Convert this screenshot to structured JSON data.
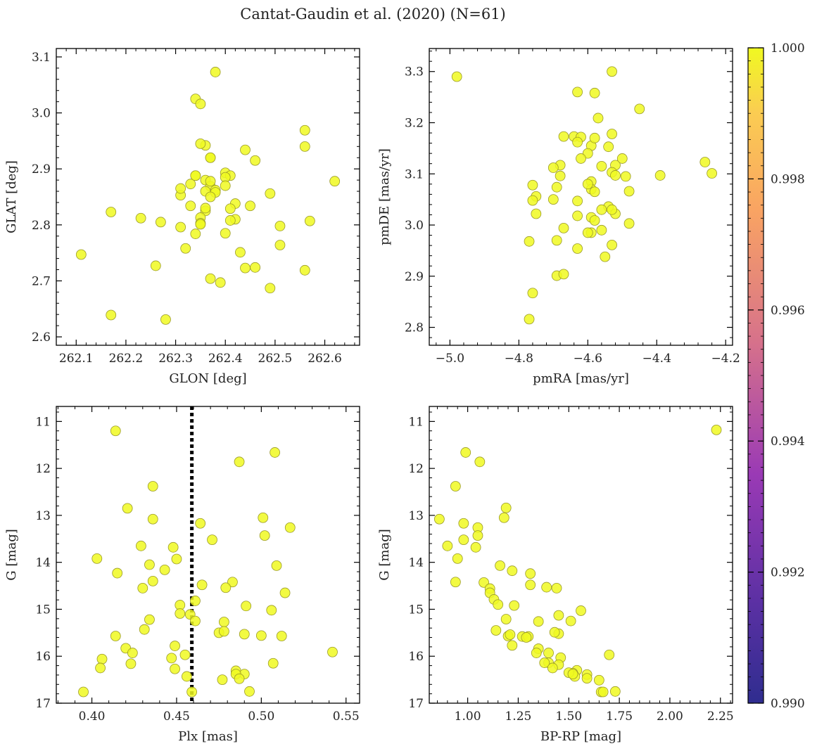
{
  "title": "Cantat-Gaudin et al. (2020) (N=61)",
  "colors": {
    "point": "#f0f921",
    "point_edge": "#9a9a2a",
    "vline": "#000000"
  },
  "colorbar": {
    "min": 0.99,
    "max": 1.0,
    "ticks": [
      "0.990",
      "0.992",
      "0.994",
      "0.996",
      "0.998",
      "1.000"
    ],
    "tick_values": [
      0.99,
      0.992,
      0.994,
      0.996,
      0.998,
      1.0
    ],
    "colormap": "plasma"
  },
  "chart_data": [
    {
      "type": "scatter",
      "xlabel": "GLON [deg]",
      "ylabel": "GLAT [deg]",
      "xlim": [
        262.06,
        262.67
      ],
      "ylim": [
        2.585,
        3.115
      ],
      "xticks": [
        262.1,
        262.2,
        262.3,
        262.4,
        262.5,
        262.6
      ],
      "xtick_labels": [
        "262.1",
        "262.2",
        "262.3",
        "262.4",
        "262.5",
        "262.6"
      ],
      "yticks": [
        2.6,
        2.7,
        2.8,
        2.9,
        3.0,
        3.1
      ],
      "ytick_labels": [
        "2.6",
        "2.7",
        "2.8",
        "2.9",
        "3.0",
        "3.1"
      ],
      "x": [
        262.38,
        262.34,
        262.35,
        262.56,
        262.56,
        262.44,
        262.36,
        262.37,
        262.46,
        262.35,
        262.4,
        262.34,
        262.41,
        262.36,
        262.62,
        262.37,
        262.38,
        262.36,
        262.38,
        262.31,
        262.49,
        262.4,
        262.37,
        262.33,
        262.42,
        262.45,
        262.31,
        262.36,
        262.17,
        262.23,
        262.35,
        262.42,
        262.57,
        262.27,
        262.51,
        262.35,
        262.31,
        262.41,
        262.4,
        262.34,
        262.43,
        262.11,
        262.51,
        262.33,
        262.26,
        262.44,
        262.46,
        262.56,
        262.37,
        262.39,
        262.49,
        262.17,
        262.28,
        262.32,
        262.41,
        262.4,
        262.36,
        262.37,
        262.34,
        262.35,
        262.37
      ],
      "y": [
        3.073,
        3.025,
        3.016,
        2.969,
        2.94,
        2.934,
        2.942,
        2.92,
        2.915,
        2.945,
        2.893,
        2.888,
        2.888,
        2.88,
        2.878,
        2.869,
        2.862,
        2.86,
        2.858,
        2.853,
        2.856,
        2.885,
        2.85,
        2.873,
        2.838,
        2.834,
        2.865,
        2.825,
        2.823,
        2.812,
        2.813,
        2.81,
        2.807,
        2.805,
        2.798,
        2.803,
        2.796,
        2.808,
        2.785,
        2.784,
        2.751,
        2.747,
        2.764,
        2.834,
        2.727,
        2.723,
        2.724,
        2.719,
        2.704,
        2.697,
        2.687,
        2.639,
        2.631,
        2.758,
        2.829,
        2.87,
        2.83,
        2.92,
        2.888,
        2.801,
        2.878
      ]
    },
    {
      "type": "scatter",
      "xlabel": "pmRA [mas/yr]",
      "ylabel": "pmDE [mas/yr]",
      "xlim": [
        -5.06,
        -4.18
      ],
      "ylim": [
        2.765,
        3.345
      ],
      "xticks": [
        -5.0,
        -4.8,
        -4.6,
        -4.4,
        -4.2
      ],
      "xtick_labels": [
        "−5.0",
        "−4.8",
        "−4.6",
        "−4.4",
        "−4.2"
      ],
      "yticks": [
        2.8,
        2.9,
        3.0,
        3.1,
        3.2,
        3.3
      ],
      "ytick_labels": [
        "2.8",
        "2.9",
        "3.0",
        "3.1",
        "3.2",
        "3.3"
      ],
      "x": [
        -4.98,
        -4.53,
        -4.63,
        -4.58,
        -4.45,
        -4.57,
        -4.67,
        -4.64,
        -4.53,
        -4.62,
        -4.54,
        -4.52,
        -4.59,
        -4.6,
        -4.5,
        -4.68,
        -4.53,
        -4.26,
        -4.7,
        -4.56,
        -4.52,
        -4.24,
        -4.49,
        -4.39,
        -4.68,
        -4.59,
        -4.76,
        -4.59,
        -4.69,
        -4.58,
        -4.48,
        -4.75,
        -4.76,
        -4.63,
        -4.52,
        -4.54,
        -4.53,
        -4.75,
        -4.59,
        -4.63,
        -4.58,
        -4.48,
        -4.67,
        -4.59,
        -4.6,
        -4.56,
        -4.69,
        -4.77,
        -4.63,
        -4.53,
        -4.69,
        -4.67,
        -4.55,
        -4.56,
        -4.7,
        -4.76,
        -4.77,
        -4.63,
        -4.58,
        -4.6,
        -4.62
      ],
      "y": [
        3.29,
        3.3,
        3.26,
        3.258,
        3.227,
        3.209,
        3.173,
        3.173,
        3.178,
        3.172,
        3.153,
        3.117,
        3.155,
        3.14,
        3.13,
        3.117,
        3.103,
        3.123,
        3.112,
        3.115,
        3.097,
        3.101,
        3.095,
        3.097,
        3.096,
        3.085,
        3.078,
        3.07,
        3.074,
        3.065,
        3.066,
        3.056,
        3.048,
        3.047,
        3.022,
        3.036,
        3.03,
        3.022,
        3.015,
        3.018,
        3.009,
        3.003,
        2.994,
        2.985,
        2.985,
        2.99,
        2.97,
        2.968,
        2.954,
        2.961,
        2.901,
        2.904,
        2.938,
        3.03,
        3.05,
        2.867,
        2.816,
        3.162,
        3.17,
        3.08,
        3.13
      ]
    },
    {
      "type": "scatter",
      "xlabel": "Plx [mas]",
      "ylabel": "G [mag]",
      "xlim": [
        0.379,
        0.558
      ],
      "ylim": [
        17.0,
        10.68
      ],
      "inverted_y": true,
      "vline": 0.459,
      "xticks": [
        0.4,
        0.45,
        0.5,
        0.55
      ],
      "xtick_labels": [
        "0.40",
        "0.45",
        "0.50",
        "0.55"
      ],
      "yticks": [
        11,
        12,
        13,
        14,
        15,
        16,
        17
      ],
      "ytick_labels": [
        "11",
        "12",
        "13",
        "14",
        "15",
        "16",
        "17"
      ],
      "x": [
        0.414,
        0.508,
        0.487,
        0.436,
        0.421,
        0.517,
        0.501,
        0.436,
        0.464,
        0.471,
        0.502,
        0.448,
        0.429,
        0.403,
        0.45,
        0.434,
        0.509,
        0.443,
        0.415,
        0.436,
        0.43,
        0.483,
        0.465,
        0.479,
        0.514,
        0.461,
        0.491,
        0.452,
        0.478,
        0.452,
        0.458,
        0.506,
        0.434,
        0.431,
        0.475,
        0.461,
        0.49,
        0.512,
        0.414,
        0.5,
        0.478,
        0.449,
        0.42,
        0.542,
        0.424,
        0.455,
        0.447,
        0.406,
        0.507,
        0.423,
        0.405,
        0.449,
        0.485,
        0.456,
        0.49,
        0.485,
        0.487,
        0.477,
        0.493,
        0.395,
        0.459
      ],
      "y": [
        11.2,
        11.66,
        11.86,
        12.38,
        12.85,
        13.26,
        13.05,
        13.08,
        13.17,
        13.52,
        13.43,
        13.68,
        13.65,
        13.92,
        13.93,
        14.05,
        14.07,
        14.16,
        14.23,
        14.4,
        14.55,
        14.42,
        14.48,
        14.54,
        14.65,
        14.82,
        14.93,
        14.91,
        15.27,
        15.09,
        15.11,
        15.02,
        15.22,
        15.43,
        15.5,
        15.25,
        15.53,
        15.57,
        15.57,
        15.56,
        15.47,
        15.78,
        15.83,
        15.91,
        15.93,
        15.97,
        16.04,
        16.06,
        16.15,
        16.16,
        16.25,
        16.27,
        16.31,
        16.43,
        16.38,
        16.38,
        16.48,
        16.5,
        16.75,
        16.76,
        16.76
      ]
    },
    {
      "type": "scatter",
      "xlabel": "BP-RP [mag]",
      "ylabel": "G [mag]",
      "xlim": [
        0.81,
        2.31
      ],
      "ylim": [
        17.0,
        10.68
      ],
      "inverted_y": true,
      "xticks": [
        1.0,
        1.25,
        1.5,
        1.75,
        2.0,
        2.25
      ],
      "xtick_labels": [
        "1.00",
        "1.25",
        "1.50",
        "1.75",
        "2.00",
        "2.25"
      ],
      "yticks": [
        11,
        12,
        13,
        14,
        15,
        16,
        17
      ],
      "ytick_labels": [
        "11",
        "12",
        "13",
        "14",
        "15",
        "16",
        "17"
      ],
      "x": [
        2.23,
        0.99,
        1.06,
        0.94,
        1.19,
        0.86,
        1.05,
        1.18,
        0.98,
        0.98,
        1.05,
        0.9,
        1.04,
        0.95,
        1.16,
        1.22,
        1.31,
        1.44,
        1.31,
        1.39,
        0.94,
        1.08,
        1.11,
        1.11,
        1.23,
        1.13,
        1.56,
        1.45,
        1.35,
        1.51,
        1.19,
        1.45,
        1.14,
        1.2,
        1.22,
        1.43,
        1.27,
        1.3,
        1.21,
        1.7,
        1.35,
        1.4,
        1.34,
        1.4,
        1.46,
        1.54,
        1.59,
        1.45,
        1.52,
        1.38,
        1.42,
        1.59,
        1.53,
        1.5,
        1.65,
        1.66,
        1.73,
        1.67,
        1.52,
        1.15,
        1.29
      ],
      "y": [
        11.18,
        11.66,
        11.86,
        12.38,
        12.84,
        13.08,
        13.26,
        13.05,
        13.17,
        13.52,
        13.43,
        13.65,
        13.68,
        13.92,
        14.07,
        14.18,
        14.24,
        14.55,
        14.48,
        14.53,
        14.42,
        14.43,
        14.56,
        14.65,
        14.92,
        14.79,
        15.03,
        15.13,
        15.26,
        15.25,
        15.21,
        15.52,
        15.45,
        15.57,
        15.77,
        15.49,
        15.58,
        15.58,
        15.54,
        15.97,
        15.84,
        15.93,
        15.93,
        16.14,
        16.03,
        16.3,
        16.39,
        16.18,
        16.36,
        16.14,
        16.25,
        16.47,
        16.43,
        16.35,
        16.51,
        16.76,
        16.75,
        16.76,
        16.38,
        14.9,
        15.6
      ]
    }
  ]
}
